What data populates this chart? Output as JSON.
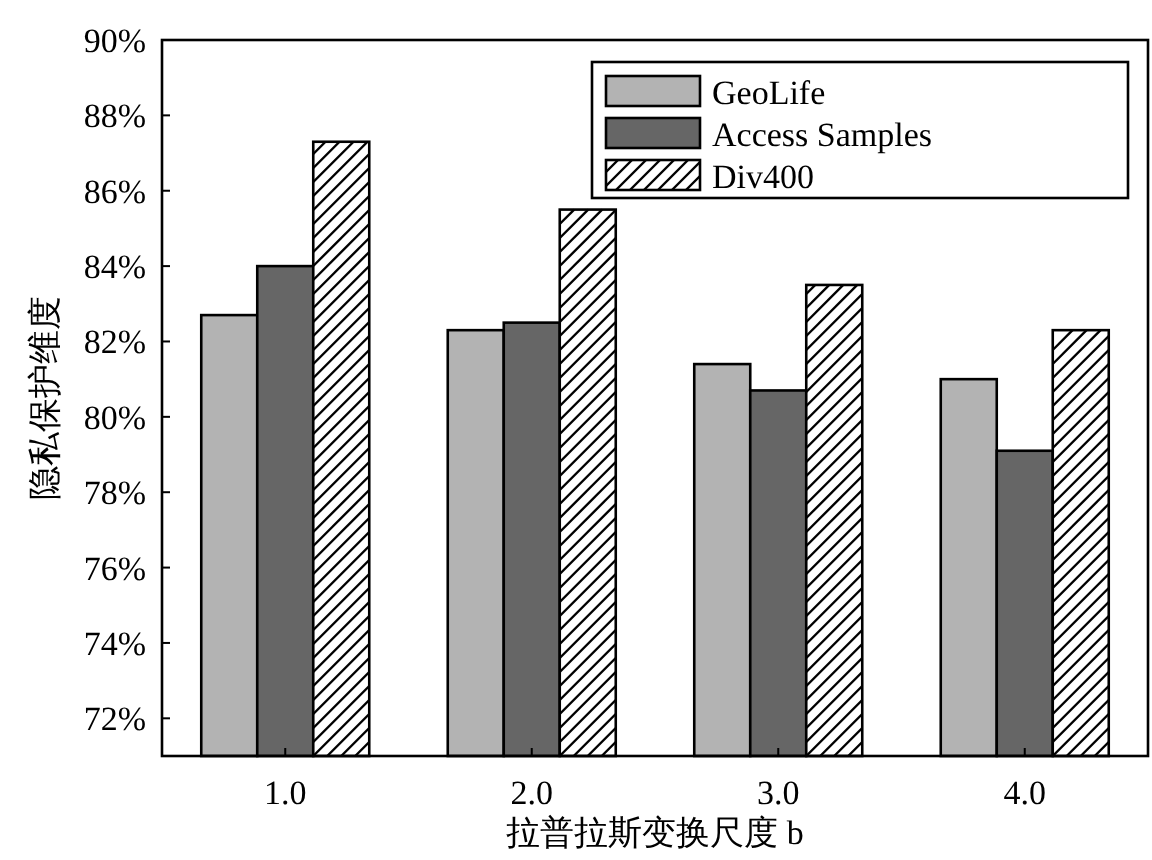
{
  "chart_data": {
    "type": "bar",
    "xlabel": "拉普拉斯变换尺度 b",
    "ylabel": "隐私保护维度",
    "categories": [
      "1.0",
      "2.0",
      "3.0",
      "4.0"
    ],
    "series": [
      {
        "name": "GeoLife",
        "color": "#b3b3b3",
        "values": [
          82.7,
          82.3,
          81.4,
          81.0
        ]
      },
      {
        "name": "Access Samples",
        "color": "#666666",
        "values": [
          84.0,
          82.5,
          80.7,
          79.1
        ]
      },
      {
        "name": "Div400",
        "color": "#ffffff",
        "values": [
          87.3,
          85.5,
          83.5,
          82.3
        ]
      }
    ],
    "ylim": [
      71,
      90
    ],
    "yticks": [
      {
        "value": 72,
        "label": "72%"
      },
      {
        "value": 74,
        "label": "74%"
      },
      {
        "value": 76,
        "label": "76%"
      },
      {
        "value": 78,
        "label": "78%"
      },
      {
        "value": 80,
        "label": "80%"
      },
      {
        "value": 82,
        "label": "82%"
      },
      {
        "value": 84,
        "label": "84%"
      },
      {
        "value": 86,
        "label": "86%"
      },
      {
        "value": 88,
        "label": "88%"
      },
      {
        "value": 90,
        "label": "90%"
      }
    ],
    "legend": "top right",
    "grid": false
  }
}
